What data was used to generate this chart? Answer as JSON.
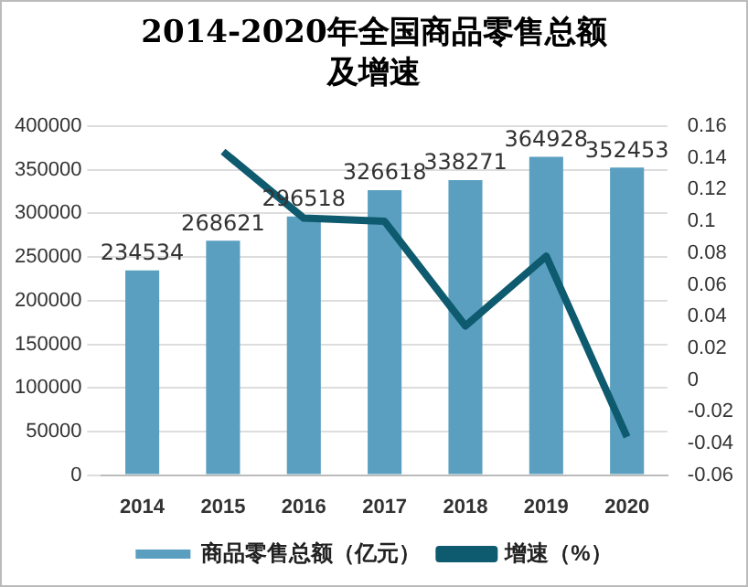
{
  "chart_data": {
    "type": "bar",
    "title": "2014-2020年全国商品零售总额及增速",
    "categories": [
      "2014",
      "2015",
      "2016",
      "2017",
      "2018",
      "2019",
      "2020"
    ],
    "series": [
      {
        "name": "商品零售总额（亿元）",
        "color": "#5a9fc0",
        "values": [
          234534,
          268621,
          296518,
          326618,
          338271,
          364928,
          352453
        ],
        "value_labels": [
          "234534",
          "268621",
          "296518",
          "326618",
          "338271",
          "364928",
          "352453"
        ]
      },
      {
        "name": "增速（%）",
        "type": "line",
        "axis": "y2",
        "color": "#0e5a6e",
        "values": [
          null,
          0.144,
          0.102,
          0.1,
          0.034,
          0.078,
          -0.036
        ]
      }
    ],
    "ylim": [
      0,
      400000
    ],
    "yticks": [
      0,
      50000,
      100000,
      150000,
      200000,
      250000,
      300000,
      350000,
      400000
    ],
    "y2lim": [
      -0.06,
      0.16
    ],
    "y2ticks": [
      -0.06,
      -0.04,
      -0.02,
      0,
      0.02,
      0.04,
      0.06,
      0.08,
      0.1,
      0.12,
      0.14,
      0.16
    ],
    "grid": "y",
    "legend": "bottom",
    "marker": "none",
    "line_style": "solid"
  }
}
